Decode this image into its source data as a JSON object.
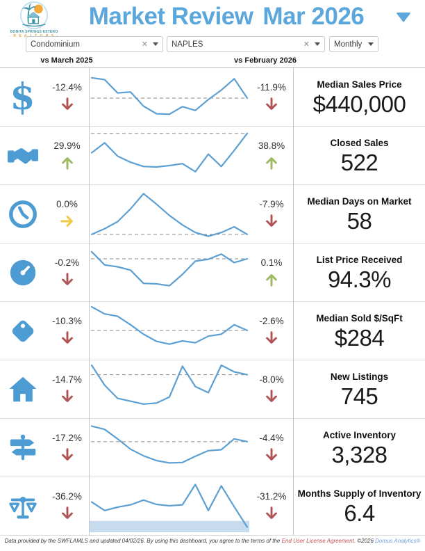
{
  "header": {
    "title_left": "Market Review",
    "title_right": "Mar 2026",
    "logo": {
      "org_line1": "BONITA SPRINGS ESTERO",
      "org_line2": "- R E A L T O R S -"
    }
  },
  "filters": {
    "property_type": {
      "value": "Condominium"
    },
    "city": {
      "value": "NAPLES"
    },
    "period": {
      "value": "Monthly"
    }
  },
  "columns": {
    "yoy_label": "vs March 2025",
    "mom_label": "vs February 2026"
  },
  "colors": {
    "accent_blue": "#5BA7DC",
    "line_blue": "#5C9FD3",
    "icon_blue": "#4C9BD2",
    "down_red": "#B05356",
    "up_green": "#9DB961",
    "flat_yellow": "#EDC944",
    "band_blue": "#C7DBEE",
    "dashed_gray": "#8a8a8a"
  },
  "rows": [
    {
      "id": "median-sales-price",
      "label": "Median Sales Price",
      "value": "$440,000",
      "pct_yoy": "-12.4%",
      "dir_yoy": "down",
      "pct_mom": "-11.9%",
      "dir_mom": "down",
      "sparkline": [
        0.9,
        0.86,
        0.58,
        0.6,
        0.3,
        0.14,
        0.13,
        0.29,
        0.21,
        0.44,
        0.64,
        0.88,
        0.47
      ],
      "ref": 0.47,
      "band": null
    },
    {
      "id": "closed-sales",
      "label": "Closed Sales",
      "value": "522",
      "pct_yoy": "29.9%",
      "dir_yoy": "up",
      "pct_mom": "38.8%",
      "dir_mom": "up",
      "sparkline": [
        0.55,
        0.76,
        0.48,
        0.35,
        0.26,
        0.25,
        0.28,
        0.32,
        0.15,
        0.52,
        0.26,
        0.6,
        0.96
      ],
      "ref": 0.96,
      "band": null
    },
    {
      "id": "median-days-on-market",
      "label": "Median Days on Market",
      "value": "58",
      "pct_yoy": "0.0%",
      "dir_yoy": "flat",
      "pct_mom": "-7.9%",
      "dir_mom": "down",
      "sparkline": [
        0.06,
        0.18,
        0.33,
        0.6,
        0.92,
        0.7,
        0.46,
        0.26,
        0.1,
        0.02,
        0.1,
        0.22,
        0.06
      ],
      "ref": 0.06,
      "band": null
    },
    {
      "id": "list-price-received",
      "label": "List Price Received",
      "value": "94.3%",
      "pct_yoy": "-0.2%",
      "dir_yoy": "down",
      "pct_mom": "0.1%",
      "dir_mom": "up",
      "sparkline": [
        0.93,
        0.65,
        0.61,
        0.54,
        0.26,
        0.25,
        0.21,
        0.45,
        0.73,
        0.77,
        0.88,
        0.7,
        0.78
      ],
      "ref": 0.78,
      "band": null
    },
    {
      "id": "median-sold-per-sqft",
      "label": "Median Sold $/SqFt",
      "value": "$284",
      "pct_yoy": "-10.3%",
      "dir_yoy": "down",
      "pct_mom": "-2.6%",
      "dir_mom": "down",
      "sparkline": [
        1.0,
        0.85,
        0.8,
        0.62,
        0.42,
        0.27,
        0.21,
        0.28,
        0.24,
        0.38,
        0.42,
        0.62,
        0.5
      ],
      "ref": 0.5,
      "band": null
    },
    {
      "id": "new-listings",
      "label": "New Listings",
      "value": "745",
      "pct_yoy": "-14.7%",
      "dir_yoy": "down",
      "pct_mom": "-8.0%",
      "dir_mom": "down",
      "sparkline": [
        1.0,
        0.58,
        0.3,
        0.24,
        0.18,
        0.2,
        0.33,
        0.98,
        0.55,
        0.42,
        1.0,
        0.86,
        0.8
      ],
      "ref": 0.8,
      "band": null
    },
    {
      "id": "active-inventory",
      "label": "Active Inventory",
      "value": "3,328",
      "pct_yoy": "-17.2%",
      "dir_yoy": "down",
      "pct_mom": "-4.4%",
      "dir_mom": "down",
      "sparkline": [
        0.95,
        0.88,
        0.68,
        0.46,
        0.32,
        0.22,
        0.17,
        0.18,
        0.31,
        0.43,
        0.45,
        0.68,
        0.62
      ],
      "ref": 0.62,
      "band": null
    },
    {
      "id": "months-supply-of-inventory",
      "label": "Months Supply of Inventory",
      "value": "6.4",
      "pct_yoy": "-36.2%",
      "dir_yoy": "down",
      "pct_mom": "-31.2%",
      "dir_mom": "down",
      "sparkline": [
        0.58,
        0.4,
        0.47,
        0.52,
        0.62,
        0.53,
        0.5,
        0.52,
        0.95,
        0.4,
        0.92,
        0.48,
        0.05
      ],
      "ref": null,
      "band": 0.18
    }
  ],
  "footer": {
    "text_1": "Data provided by the SWFLAMLS and updated 04/02/26.  By using this dashboard, you agree to the terms of the ",
    "link": "End User License Agreement.",
    "text_2": "  ©2026 ",
    "brand": "Domus Analytics®"
  }
}
